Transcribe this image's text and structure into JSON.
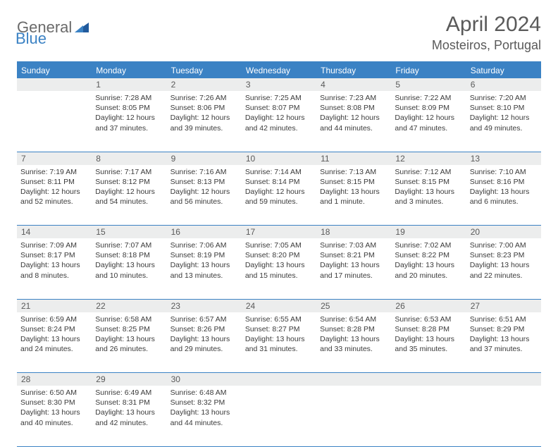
{
  "logo": {
    "word1": "General",
    "word2": "Blue",
    "color1": "#6a6a6a",
    "color2": "#3b82c4"
  },
  "title": "April 2024",
  "location": "Mosteiros, Portugal",
  "day_headers": [
    "Sunday",
    "Monday",
    "Tuesday",
    "Wednesday",
    "Thursday",
    "Friday",
    "Saturday"
  ],
  "colors": {
    "header_bg": "#3b82c4",
    "header_fg": "#ffffff",
    "daynum_bg": "#eceded",
    "rule": "#3b82c4",
    "text": "#3a3a3a"
  },
  "weeks": [
    [
      null,
      {
        "n": "1",
        "sr": "7:28 AM",
        "ss": "8:05 PM",
        "dl": "12 hours and 37 minutes."
      },
      {
        "n": "2",
        "sr": "7:26 AM",
        "ss": "8:06 PM",
        "dl": "12 hours and 39 minutes."
      },
      {
        "n": "3",
        "sr": "7:25 AM",
        "ss": "8:07 PM",
        "dl": "12 hours and 42 minutes."
      },
      {
        "n": "4",
        "sr": "7:23 AM",
        "ss": "8:08 PM",
        "dl": "12 hours and 44 minutes."
      },
      {
        "n": "5",
        "sr": "7:22 AM",
        "ss": "8:09 PM",
        "dl": "12 hours and 47 minutes."
      },
      {
        "n": "6",
        "sr": "7:20 AM",
        "ss": "8:10 PM",
        "dl": "12 hours and 49 minutes."
      }
    ],
    [
      {
        "n": "7",
        "sr": "7:19 AM",
        "ss": "8:11 PM",
        "dl": "12 hours and 52 minutes."
      },
      {
        "n": "8",
        "sr": "7:17 AM",
        "ss": "8:12 PM",
        "dl": "12 hours and 54 minutes."
      },
      {
        "n": "9",
        "sr": "7:16 AM",
        "ss": "8:13 PM",
        "dl": "12 hours and 56 minutes."
      },
      {
        "n": "10",
        "sr": "7:14 AM",
        "ss": "8:14 PM",
        "dl": "12 hours and 59 minutes."
      },
      {
        "n": "11",
        "sr": "7:13 AM",
        "ss": "8:15 PM",
        "dl": "13 hours and 1 minute."
      },
      {
        "n": "12",
        "sr": "7:12 AM",
        "ss": "8:15 PM",
        "dl": "13 hours and 3 minutes."
      },
      {
        "n": "13",
        "sr": "7:10 AM",
        "ss": "8:16 PM",
        "dl": "13 hours and 6 minutes."
      }
    ],
    [
      {
        "n": "14",
        "sr": "7:09 AM",
        "ss": "8:17 PM",
        "dl": "13 hours and 8 minutes."
      },
      {
        "n": "15",
        "sr": "7:07 AM",
        "ss": "8:18 PM",
        "dl": "13 hours and 10 minutes."
      },
      {
        "n": "16",
        "sr": "7:06 AM",
        "ss": "8:19 PM",
        "dl": "13 hours and 13 minutes."
      },
      {
        "n": "17",
        "sr": "7:05 AM",
        "ss": "8:20 PM",
        "dl": "13 hours and 15 minutes."
      },
      {
        "n": "18",
        "sr": "7:03 AM",
        "ss": "8:21 PM",
        "dl": "13 hours and 17 minutes."
      },
      {
        "n": "19",
        "sr": "7:02 AM",
        "ss": "8:22 PM",
        "dl": "13 hours and 20 minutes."
      },
      {
        "n": "20",
        "sr": "7:00 AM",
        "ss": "8:23 PM",
        "dl": "13 hours and 22 minutes."
      }
    ],
    [
      {
        "n": "21",
        "sr": "6:59 AM",
        "ss": "8:24 PM",
        "dl": "13 hours and 24 minutes."
      },
      {
        "n": "22",
        "sr": "6:58 AM",
        "ss": "8:25 PM",
        "dl": "13 hours and 26 minutes."
      },
      {
        "n": "23",
        "sr": "6:57 AM",
        "ss": "8:26 PM",
        "dl": "13 hours and 29 minutes."
      },
      {
        "n": "24",
        "sr": "6:55 AM",
        "ss": "8:27 PM",
        "dl": "13 hours and 31 minutes."
      },
      {
        "n": "25",
        "sr": "6:54 AM",
        "ss": "8:28 PM",
        "dl": "13 hours and 33 minutes."
      },
      {
        "n": "26",
        "sr": "6:53 AM",
        "ss": "8:28 PM",
        "dl": "13 hours and 35 minutes."
      },
      {
        "n": "27",
        "sr": "6:51 AM",
        "ss": "8:29 PM",
        "dl": "13 hours and 37 minutes."
      }
    ],
    [
      {
        "n": "28",
        "sr": "6:50 AM",
        "ss": "8:30 PM",
        "dl": "13 hours and 40 minutes."
      },
      {
        "n": "29",
        "sr": "6:49 AM",
        "ss": "8:31 PM",
        "dl": "13 hours and 42 minutes."
      },
      {
        "n": "30",
        "sr": "6:48 AM",
        "ss": "8:32 PM",
        "dl": "13 hours and 44 minutes."
      },
      null,
      null,
      null,
      null
    ]
  ],
  "labels": {
    "sunrise": "Sunrise:",
    "sunset": "Sunset:",
    "daylight": "Daylight:"
  }
}
